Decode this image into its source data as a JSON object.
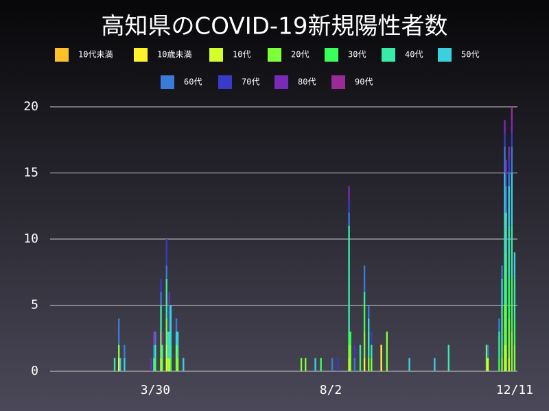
{
  "chart_data": {
    "type": "stacked_bar",
    "title": "高知県のCOVID-19新規陽性者数",
    "x": [
      61,
      64,
      65,
      68,
      87,
      89,
      90,
      94,
      95,
      98,
      99,
      100,
      101,
      105,
      106,
      110,
      194,
      197,
      204,
      208,
      216,
      220,
      228,
      229,
      232,
      236,
      239,
      242,
      244,
      251,
      255,
      271,
      289,
      299,
      326,
      327,
      335,
      337,
      339,
      340,
      342,
      344,
      346
    ],
    "xlim": [
      15,
      348
    ],
    "xticks": [
      {
        "value": 90,
        "label": "3/30"
      },
      {
        "value": 215,
        "label": "8/2"
      },
      {
        "value": 346,
        "label": "12/11"
      }
    ],
    "ylim": [
      0,
      20
    ],
    "yticks": [
      0,
      5,
      10,
      15,
      20
    ],
    "grid": true,
    "series": [
      {
        "name": "10代未満",
        "color": "#ffc12a",
        "values": [
          0,
          0,
          0,
          0,
          0,
          0,
          0,
          0,
          0,
          0,
          0,
          0,
          0,
          0,
          0,
          0,
          0,
          0,
          0,
          0,
          0,
          0,
          0,
          0,
          0,
          0,
          0,
          0,
          0,
          0,
          0,
          0,
          0,
          0,
          0,
          0,
          0,
          0,
          0,
          0,
          0,
          0,
          0
        ]
      },
      {
        "name": "10歳未満",
        "color": "#fff22a",
        "values": [
          0,
          1,
          0,
          0,
          0,
          0,
          0,
          0,
          0,
          1,
          0,
          0,
          0,
          0,
          0,
          0,
          0,
          0,
          0,
          0,
          0,
          0,
          0,
          0,
          0,
          0,
          1,
          0,
          0,
          2,
          0,
          0,
          0,
          0,
          0,
          0,
          0,
          0,
          0,
          0,
          0,
          0,
          0
        ]
      },
      {
        "name": "10代",
        "color": "#d4ff2a",
        "values": [
          0,
          0,
          0,
          0,
          0,
          0,
          0,
          1,
          0,
          1,
          0,
          1,
          0,
          0,
          0,
          0,
          0,
          0,
          0,
          0,
          0,
          0,
          1,
          0,
          0,
          0,
          0,
          0,
          0,
          0,
          0,
          0,
          0,
          0,
          0,
          1,
          0,
          0,
          2,
          0,
          1,
          0,
          0
        ]
      },
      {
        "name": "20代",
        "color": "#7dff3a",
        "values": [
          0,
          1,
          0,
          0,
          0,
          0,
          0,
          2,
          0,
          2,
          1,
          0,
          0,
          2,
          1,
          0,
          1,
          1,
          0,
          0,
          0,
          0,
          1,
          2,
          0,
          0,
          2,
          1,
          1,
          0,
          3,
          0,
          0,
          0,
          2,
          0,
          0,
          1,
          3,
          2,
          3,
          3,
          2
        ]
      },
      {
        "name": "30代",
        "color": "#3aff5a",
        "values": [
          0,
          0,
          0,
          0,
          0,
          0,
          1,
          0,
          1,
          0,
          0,
          0,
          1,
          0,
          0,
          0,
          0,
          0,
          0,
          1,
          0,
          0,
          1,
          1,
          0,
          1,
          2,
          0,
          0,
          0,
          0,
          0,
          0,
          0,
          0,
          0,
          1,
          1,
          3,
          3,
          3,
          4,
          2
        ]
      },
      {
        "name": "40代",
        "color": "#3aeaa8",
        "values": [
          1,
          0,
          0,
          0,
          0,
          1,
          1,
          2,
          1,
          3,
          0,
          2,
          1,
          0,
          1,
          0,
          0,
          0,
          0,
          0,
          0,
          0,
          8,
          0,
          0,
          1,
          1,
          2,
          1,
          0,
          0,
          0,
          0,
          2,
          0,
          0,
          2,
          3,
          4,
          4,
          4,
          4,
          3
        ]
      },
      {
        "name": "50代",
        "color": "#3ad0e0",
        "values": [
          0,
          0,
          1,
          1,
          0,
          0,
          0,
          0,
          0,
          0,
          2,
          0,
          3,
          1,
          1,
          1,
          0,
          0,
          1,
          0,
          0,
          0,
          0,
          0,
          0,
          0,
          0,
          1,
          0,
          0,
          0,
          1,
          1,
          0,
          0,
          0,
          0,
          2,
          3,
          3,
          3,
          4,
          2
        ]
      },
      {
        "name": "60代",
        "color": "#3a7ad8",
        "values": [
          0,
          2,
          0,
          1,
          0,
          1,
          1,
          1,
          0,
          1,
          0,
          2,
          0,
          1,
          0,
          0,
          0,
          0,
          0,
          0,
          1,
          0,
          1,
          0,
          1,
          0,
          2,
          1,
          0,
          0,
          0,
          0,
          0,
          0,
          0,
          1,
          1,
          1,
          2,
          2,
          1,
          2,
          0
        ]
      },
      {
        "name": "70代",
        "color": "#3a3ac8",
        "values": [
          0,
          0,
          0,
          0,
          0,
          0,
          0,
          1,
          0,
          2,
          0,
          0,
          0,
          0,
          0,
          0,
          0,
          0,
          0,
          0,
          0,
          1,
          1,
          0,
          1,
          0,
          0,
          0,
          1,
          0,
          0,
          0,
          0,
          0,
          0,
          0,
          0,
          0,
          1,
          1,
          1,
          1,
          0
        ]
      },
      {
        "name": "80代",
        "color": "#7a2ab8",
        "values": [
          0,
          0,
          0,
          0,
          1,
          0,
          0,
          0,
          1,
          0,
          0,
          1,
          0,
          0,
          0,
          0,
          0,
          0,
          0,
          0,
          0,
          0,
          1,
          0,
          0,
          0,
          0,
          0,
          0,
          0,
          0,
          0,
          0,
          0,
          0,
          0,
          0,
          0,
          1,
          1,
          1,
          1,
          0
        ]
      },
      {
        "name": "90代",
        "color": "#9a2a98",
        "values": [
          0,
          0,
          0,
          0,
          0,
          1,
          0,
          0,
          0,
          0,
          0,
          0,
          0,
          0,
          0,
          0,
          0,
          0,
          0,
          0,
          0,
          0,
          0,
          0,
          0,
          0,
          0,
          0,
          0,
          0,
          0,
          0,
          0,
          0,
          0,
          0,
          0,
          0,
          0,
          0,
          0,
          1,
          0
        ]
      }
    ]
  }
}
